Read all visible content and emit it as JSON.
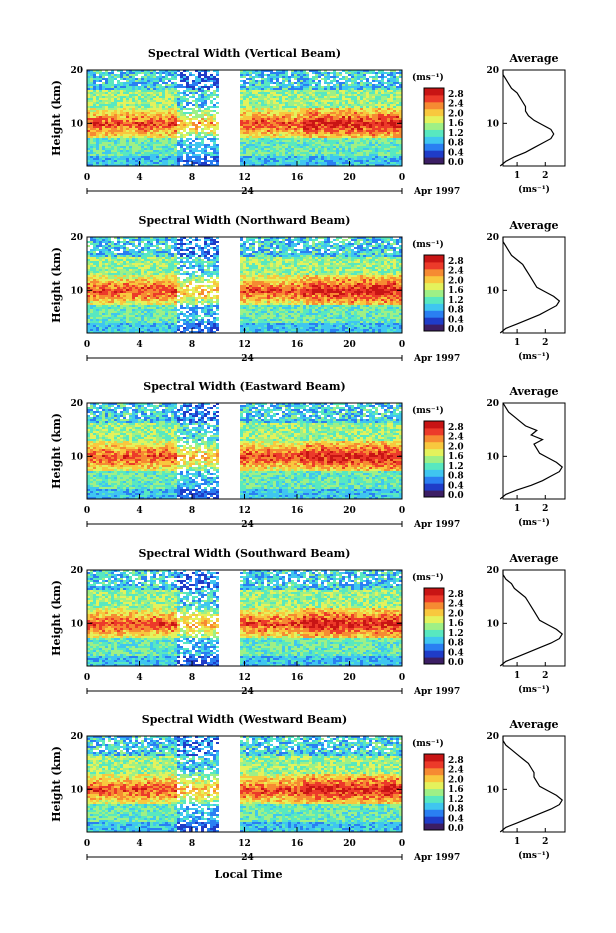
{
  "chart_data": {
    "type": "heatmap",
    "common": {
      "ylabel": "Height (km)",
      "y_ticks": [
        "10",
        "20"
      ],
      "x_ticks": [
        "0",
        "4",
        "8",
        "12",
        "16",
        "20",
        "0"
      ],
      "day_label": "24",
      "date_label": "Apr 1997",
      "xlabel": "Local Time",
      "cbar_unit": "(ms⁻¹)",
      "cbar_ticks": [
        "2.8",
        "2.4",
        "2.0",
        "1.6",
        "1.2",
        "0.8",
        "0.4",
        "0.0"
      ],
      "avg_title": "Average",
      "avg_xlabel": "(ms⁻¹)",
      "avg_x_ticks": [
        "1",
        "2"
      ],
      "avg_y_ticks": [
        "10",
        "20"
      ],
      "colors": [
        "#3c1e64",
        "#1f3cc8",
        "#2a7ff2",
        "#3fc6f0",
        "#58e8c0",
        "#9ef086",
        "#e4f25c",
        "#f8c83e",
        "#f68a32",
        "#ec3a2a",
        "#c81414"
      ]
    },
    "panels": [
      {
        "title": "Spectral Width (Vertical Beam)",
        "avg_profile": [
          0.4,
          0.6,
          0.9,
          1.3,
          1.6,
          1.9,
          2.2,
          2.3,
          2.2,
          1.9,
          1.6,
          1.4,
          1.3,
          1.3,
          1.2,
          1.1,
          1.0,
          0.8,
          0.7,
          0.6,
          0.5,
          0.5
        ]
      },
      {
        "title": "Spectral Width (Northward Beam)",
        "avg_profile": [
          0.4,
          0.6,
          1.0,
          1.4,
          1.8,
          2.1,
          2.4,
          2.5,
          2.3,
          2.0,
          1.7,
          1.6,
          1.5,
          1.4,
          1.3,
          1.2,
          1.0,
          0.8,
          0.7,
          0.6,
          0.5,
          0.5
        ]
      },
      {
        "title": "Spectral Width (Eastward Beam)",
        "avg_profile": [
          0.4,
          0.6,
          1.0,
          1.5,
          1.9,
          2.2,
          2.5,
          2.6,
          2.4,
          2.1,
          1.8,
          1.7,
          1.6,
          1.9,
          1.5,
          1.7,
          1.3,
          1.1,
          0.9,
          0.7,
          0.6,
          0.5
        ]
      },
      {
        "title": "Spectral Width (Southward Beam)",
        "avg_profile": [
          0.4,
          0.6,
          1.0,
          1.4,
          1.8,
          2.2,
          2.5,
          2.6,
          2.4,
          2.1,
          1.8,
          1.7,
          1.6,
          1.5,
          1.4,
          1.3,
          1.1,
          0.9,
          0.8,
          0.6,
          0.5,
          0.5
        ]
      },
      {
        "title": "Spectral Width (Westward Beam)",
        "avg_profile": [
          0.4,
          0.6,
          1.0,
          1.4,
          1.8,
          2.2,
          2.5,
          2.6,
          2.4,
          2.1,
          1.8,
          1.7,
          1.6,
          1.6,
          1.5,
          1.4,
          1.2,
          1.0,
          0.8,
          0.6,
          0.5,
          0.5
        ]
      }
    ]
  }
}
